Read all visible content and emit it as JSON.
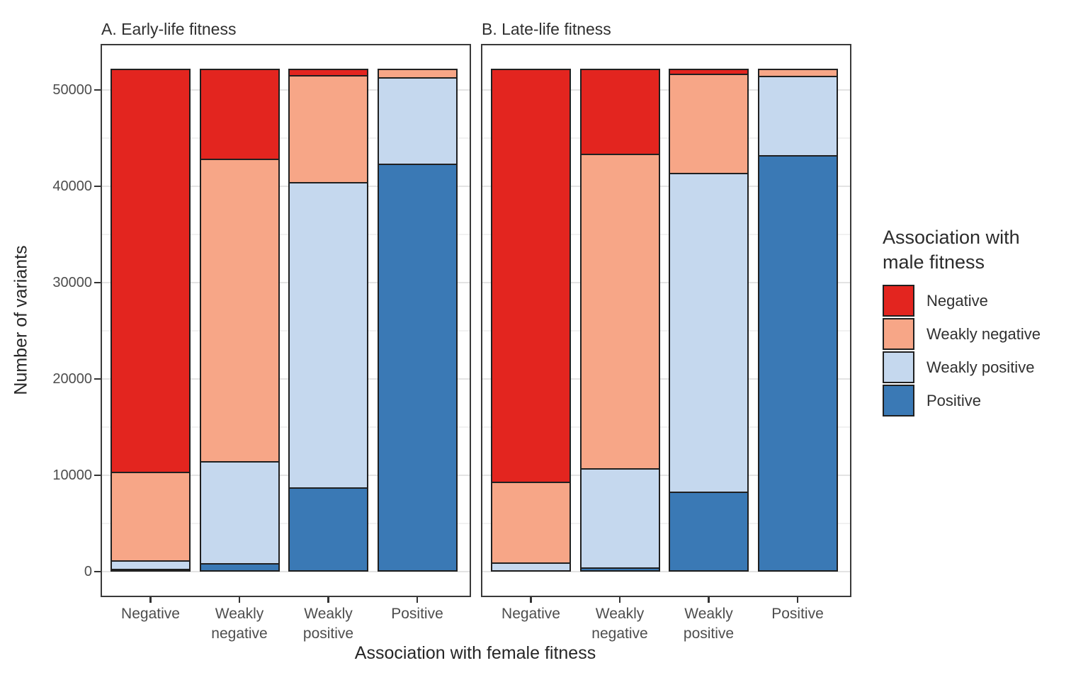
{
  "chart_data": {
    "type": "bar",
    "stacked": true,
    "orientation": "vertical",
    "x_axis_label": "Association with female fitness",
    "y_axis_label": "Number of variants",
    "categories": [
      "Negative",
      "Weakly negative",
      "Weakly positive",
      "Positive"
    ],
    "y_ticks": [
      0,
      10000,
      20000,
      30000,
      40000,
      50000
    ],
    "y_minor_gridlines": [
      5000,
      15000,
      25000,
      35000,
      45000
    ],
    "ylim": [
      0,
      55000
    ],
    "grid": "major and minor horizontal gridlines, light gray on white",
    "legend_position": "right",
    "legend_title_lines": [
      "Association with",
      "male fitness"
    ],
    "bar_outline_color": "#202020",
    "panels": [
      {
        "label": "A. Early-life fitness",
        "series": [
          {
            "name": "Negative",
            "color": "#E3251F",
            "values": [
              41800,
              9300,
              600,
              0
            ]
          },
          {
            "name": "Weakly negative",
            "color": "#F7A687",
            "values": [
              9200,
              31400,
              11100,
              850
            ]
          },
          {
            "name": "Weakly positive",
            "color": "#C5D8EE",
            "values": [
              900,
              10600,
              31700,
              8950
            ]
          },
          {
            "name": "Positive",
            "color": "#3A79B5",
            "values": [
              300,
              900,
              8800,
              42400
            ]
          }
        ]
      },
      {
        "label": "B. Late-life fitness",
        "series": [
          {
            "name": "Negative",
            "color": "#E3251F",
            "values": [
              42800,
              8750,
              450,
              0
            ]
          },
          {
            "name": "Weakly negative",
            "color": "#F7A687",
            "values": [
              8400,
              32700,
              10300,
              700
            ]
          },
          {
            "name": "Weakly positive",
            "color": "#C5D8EE",
            "values": [
              800,
              10300,
              33100,
              8250
            ]
          },
          {
            "name": "Positive",
            "color": "#3A79B5",
            "values": [
              200,
              450,
              8350,
              43250
            ]
          }
        ]
      }
    ]
  }
}
